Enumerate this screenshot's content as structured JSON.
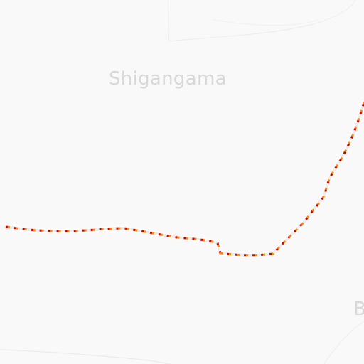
{
  "map": {
    "labels": {
      "primary": "Shigangama",
      "edge": "B"
    },
    "colors": {
      "background": "#f9f9f9",
      "road": "#ececec",
      "road_casing": "#ffffff",
      "boundary": "#e8e8e8",
      "route_dash_primary": "#ff8a00",
      "route_dash_secondary": "#d40000",
      "label": "#d8d8d8"
    },
    "route": {
      "style": "dashed",
      "type": "track"
    }
  }
}
